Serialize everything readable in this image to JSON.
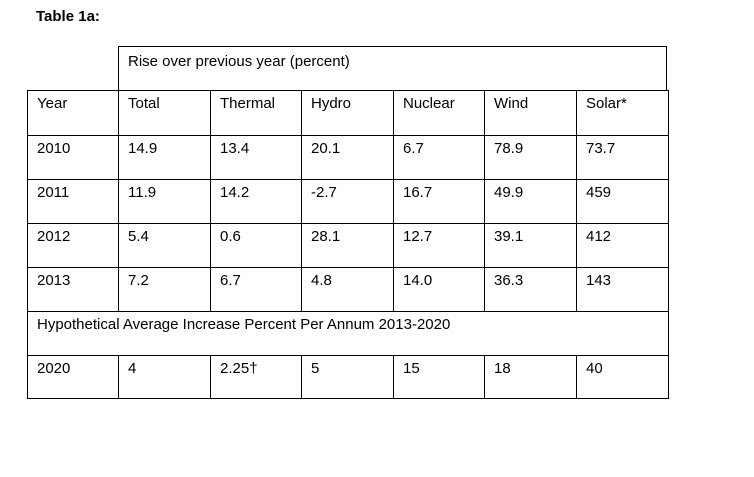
{
  "title": "Table 1a:",
  "header_caption": "Rise over previous year (percent)",
  "columns": [
    "Year",
    "Total",
    "Thermal",
    "Hydro",
    "Nuclear",
    "Wind",
    "Solar*"
  ],
  "rows": [
    [
      "2010",
      "14.9",
      "13.4",
      "20.1",
      "6.7",
      "78.9",
      "73.7"
    ],
    [
      "2011",
      "11.9",
      "14.2",
      "-2.7",
      "16.7",
      "49.9",
      "459"
    ],
    [
      "2012",
      "5.4",
      "0.6",
      "28.1",
      "12.7",
      "39.1",
      "412"
    ],
    [
      "2013",
      "7.2",
      "6.7",
      "4.8",
      "14.0",
      "36.3",
      "143"
    ]
  ],
  "section_label": "Hypothetical Average Increase Percent Per Annum 2013-2020",
  "projection_row": [
    "2020",
    "4",
    "2.25†",
    "5",
    "15",
    "18",
    "40"
  ]
}
